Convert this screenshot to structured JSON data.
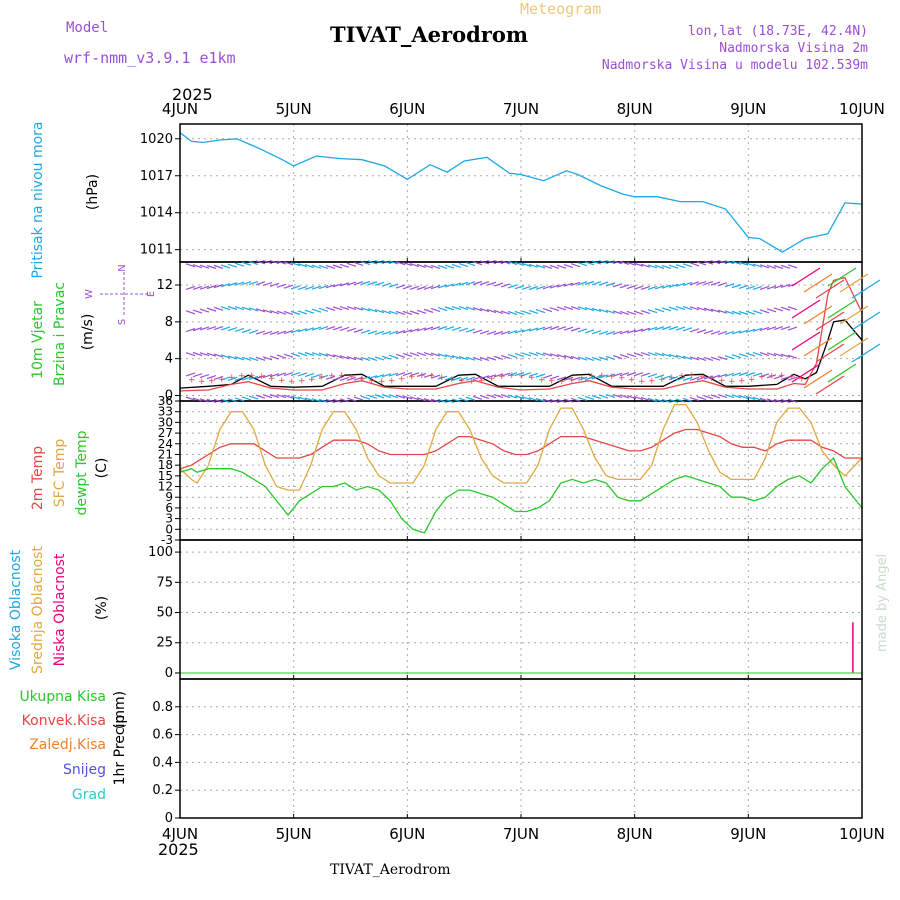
{
  "header": {
    "model_label": "Model",
    "model_name": "wrf-nmm_v3.9.1 e1km",
    "meteogram_label": "Meteogram",
    "title": "TIVAT_Aerodrom",
    "coords": "lon,lat (18.73E, 42.4N)",
    "altitude": "Nadmorska Visina 2m",
    "model_altitude": "Nadmorska Visina u modelu 102.539m",
    "credit": "made by Angel",
    "footer_title": "TIVAT_Aerodrom"
  },
  "time_axis": {
    "year": "2025",
    "ticks": [
      "4JUN",
      "5JUN",
      "6JUN",
      "7JUN",
      "8JUN",
      "9JUN",
      "10JUN"
    ]
  },
  "colors": {
    "pressure": "#1ea7e6",
    "temp2m": "#e64646",
    "sfc_temp": "#e0a840",
    "dewpoint": "#28c828",
    "wind_speed": "#000000",
    "gust": "#e64646",
    "precip_total": "#28c828",
    "precip_conv": "#e64646",
    "precip_frozen": "#f08030",
    "snow": "#5050e6",
    "hail": "#30c8c8",
    "cloud_high": "#1ea7e6",
    "cloud_mid": "#e0a840",
    "cloud_low": "#e6007e",
    "purple": "#9b4ed8"
  },
  "chart_data": [
    {
      "type": "line",
      "ylabel": "Pritisak na nivou mora",
      "unit": "(hPa)",
      "ylim": [
        1010,
        1021.2
      ],
      "yticks": [
        "1011",
        "1014",
        "1017",
        "1020"
      ],
      "grid": true,
      "x": [
        0,
        0.1,
        0.2,
        0.35,
        0.5,
        0.7,
        0.9,
        1.0,
        1.2,
        1.4,
        1.6,
        1.8,
        2.0,
        2.2,
        2.35,
        2.5,
        2.7,
        2.9,
        3.0,
        3.2,
        3.4,
        3.5,
        3.7,
        3.9,
        4.0,
        4.2,
        4.4,
        4.6,
        4.8,
        5.0,
        5.1,
        5.3,
        5.5,
        5.7,
        5.85,
        6.0
      ],
      "series": [
        {
          "name": "pressure",
          "values": [
            1020.5,
            1019.8,
            1019.7,
            1019.9,
            1020.0,
            1019.2,
            1018.3,
            1017.8,
            1018.6,
            1018.4,
            1018.3,
            1017.8,
            1016.7,
            1017.9,
            1017.3,
            1018.2,
            1018.5,
            1017.2,
            1017.1,
            1016.6,
            1017.4,
            1017.1,
            1016.2,
            1015.5,
            1015.3,
            1015.3,
            1014.9,
            1014.9,
            1014.3,
            1012.0,
            1011.9,
            1010.8,
            1011.9,
            1012.3,
            1014.8,
            1014.7
          ]
        }
      ]
    },
    {
      "type": "line",
      "ylabel": "10m Vjetar",
      "ylabel2": "Brzina i Pravac",
      "unit": "(m/s)",
      "compass": [
        "N",
        "E",
        "S",
        "W"
      ],
      "ylim": [
        -0.6,
        14.5
      ],
      "yticks": [
        "0",
        "4",
        "8",
        "12"
      ],
      "grid": true,
      "x": [
        0,
        0.25,
        0.45,
        0.6,
        0.8,
        1.0,
        1.25,
        1.45,
        1.6,
        1.8,
        2.0,
        2.25,
        2.45,
        2.6,
        2.8,
        3.0,
        3.25,
        3.45,
        3.6,
        3.8,
        4.0,
        4.25,
        4.45,
        4.6,
        4.8,
        5.0,
        5.25,
        5.4,
        5.5,
        5.6,
        5.7,
        5.75,
        5.85,
        6.0
      ],
      "series": [
        {
          "name": "wind_speed",
          "values": [
            0.8,
            1.0,
            1.2,
            2.2,
            1.0,
            0.9,
            1.0,
            2.2,
            2.3,
            1.0,
            1.0,
            1.0,
            2.2,
            2.3,
            1.0,
            1.0,
            1.0,
            2.2,
            2.3,
            1.0,
            1.0,
            1.0,
            2.2,
            2.3,
            1.0,
            1.0,
            1.2,
            2.3,
            1.8,
            2.5,
            6,
            8,
            8.2,
            6
          ]
        },
        {
          "name": "gust",
          "values": [
            0.5,
            0.6,
            1.2,
            1.5,
            0.8,
            0.6,
            0.6,
            1.3,
            1.6,
            0.9,
            0.7,
            0.7,
            1.3,
            1.6,
            0.9,
            0.6,
            0.7,
            1.3,
            1.6,
            0.9,
            0.7,
            0.7,
            1.3,
            1.6,
            0.9,
            0.7,
            0.7,
            1.3,
            1.2,
            3.5,
            11,
            12.5,
            12.8,
            9
          ]
        }
      ]
    },
    {
      "type": "line",
      "ylabel": "2m Temp",
      "ylabel2": "SFC Temp",
      "ylabel3": "dewpt Temp",
      "unit": "(C)",
      "ylim": [
        -3,
        36
      ],
      "yticks": [
        "-3",
        "0",
        "3",
        "6",
        "9",
        "12",
        "15",
        "18",
        "21",
        "24",
        "27",
        "30",
        "33",
        "36"
      ],
      "grid": true,
      "x": [
        0,
        0.1,
        0.15,
        0.25,
        0.35,
        0.45,
        0.55,
        0.65,
        0.75,
        0.85,
        0.95,
        1.05,
        1.15,
        1.25,
        1.35,
        1.45,
        1.55,
        1.65,
        1.75,
        1.85,
        1.95,
        2.05,
        2.15,
        2.25,
        2.35,
        2.45,
        2.55,
        2.65,
        2.75,
        2.85,
        2.95,
        3.05,
        3.15,
        3.25,
        3.35,
        3.45,
        3.55,
        3.65,
        3.75,
        3.85,
        3.95,
        4.05,
        4.15,
        4.25,
        4.35,
        4.45,
        4.55,
        4.65,
        4.75,
        4.85,
        4.95,
        5.05,
        5.15,
        5.25,
        5.35,
        5.45,
        5.55,
        5.65,
        5.75,
        5.85,
        6.0
      ],
      "series": [
        {
          "name": "temp2m",
          "values": [
            17,
            18,
            19,
            21,
            23,
            24,
            24,
            24,
            22,
            20,
            20,
            20,
            21,
            23,
            25,
            25,
            25,
            24,
            22,
            21,
            21,
            21,
            21,
            22,
            24,
            26,
            26,
            25,
            24,
            22,
            21,
            21,
            22,
            24,
            26,
            26,
            26,
            25,
            24,
            23,
            22,
            22,
            23,
            25,
            27,
            28,
            28,
            27,
            26,
            24,
            23,
            23,
            22,
            24,
            25,
            25,
            25,
            23,
            22,
            20,
            20
          ]
        },
        {
          "name": "sfc_temp",
          "values": [
            17,
            14,
            13,
            18,
            28,
            33,
            33,
            28,
            18,
            12,
            11,
            11,
            18,
            28,
            33,
            33,
            28,
            20,
            15,
            13,
            13,
            13,
            18,
            28,
            33,
            33,
            28,
            20,
            15,
            13,
            13,
            13,
            18,
            28,
            34,
            34,
            28,
            20,
            15,
            14,
            14,
            14,
            18,
            28,
            35,
            35,
            30,
            22,
            16,
            14,
            14,
            14,
            20,
            30,
            34,
            34,
            30,
            22,
            18,
            15,
            20
          ]
        },
        {
          "name": "dewpoint",
          "values": [
            16,
            17,
            16,
            17,
            17,
            17,
            16,
            14,
            12,
            8,
            4,
            8,
            10,
            12,
            12,
            13,
            11,
            12,
            11,
            8,
            3,
            0,
            -1,
            5,
            9,
            11,
            11,
            10,
            9,
            7,
            5,
            5,
            6,
            8,
            13,
            14,
            13,
            14,
            13,
            9,
            8,
            8,
            10,
            12,
            14,
            15,
            14,
            13,
            12,
            9,
            9,
            8,
            9,
            12,
            14,
            15,
            13,
            17,
            20,
            12,
            6
          ]
        }
      ]
    },
    {
      "type": "bar",
      "ylabel": "Visoka Oblacnost",
      "ylabel2": "Srednja Oblacnost",
      "ylabel3": "Niska Oblacnost",
      "unit": "(%)",
      "ylim": [
        -5,
        110
      ],
      "yticks": [
        "0",
        "25",
        "50",
        "75",
        "100"
      ],
      "grid": true,
      "series": [
        {
          "name": "cloud_low",
          "x": [
            5.92
          ],
          "values": [
            42
          ]
        }
      ]
    },
    {
      "type": "bar",
      "ylabel": "1hr Precip",
      "unit": "(mm)",
      "ylim": [
        0,
        1.0
      ],
      "yticks": [
        "0",
        "0.2",
        "0.4",
        "0.6",
        "0.8"
      ],
      "grid": true,
      "legend": [
        "Ukupna Kisa",
        "Konvek.Kisa",
        "Zaledj.Kisa",
        "Snijeg",
        "Grad"
      ],
      "series": []
    }
  ]
}
